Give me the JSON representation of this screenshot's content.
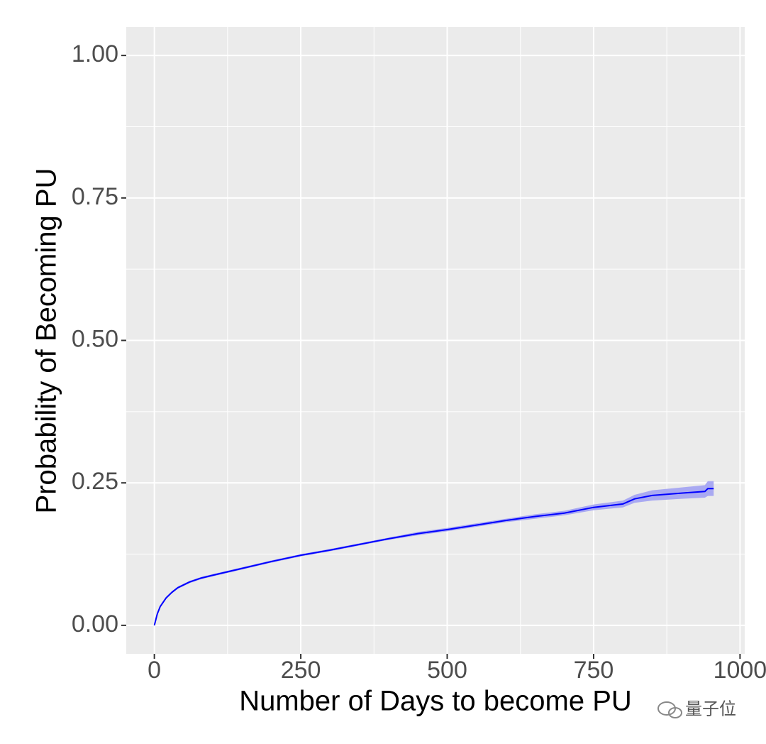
{
  "chart_data": {
    "type": "line",
    "x_label": "Number of Days to become PU",
    "y_label": "Probability of Becoming PU",
    "x": [
      0,
      5,
      10,
      20,
      30,
      40,
      60,
      80,
      100,
      150,
      200,
      250,
      300,
      350,
      400,
      450,
      500,
      550,
      600,
      650,
      700,
      750,
      800,
      820,
      850,
      900,
      940,
      945,
      955
    ],
    "series": [
      {
        "color": "#0000ff",
        "band_color": "#a9a9f2",
        "values": [
          0,
          0.02,
          0.033,
          0.048,
          0.058,
          0.066,
          0.076,
          0.083,
          0.088,
          0.1,
          0.112,
          0.123,
          0.132,
          0.142,
          0.152,
          0.161,
          0.168,
          0.176,
          0.184,
          0.191,
          0.197,
          0.207,
          0.213,
          0.222,
          0.228,
          0.232,
          0.235,
          0.24,
          0.24
        ],
        "lower": [
          0,
          0.018,
          0.031,
          0.046,
          0.056,
          0.064,
          0.074,
          0.081,
          0.086,
          0.098,
          0.11,
          0.121,
          0.13,
          0.14,
          0.15,
          0.158,
          0.165,
          0.173,
          0.181,
          0.187,
          0.193,
          0.202,
          0.207,
          0.215,
          0.219,
          0.222,
          0.224,
          0.227,
          0.227
        ],
        "upper": [
          0,
          0.022,
          0.035,
          0.05,
          0.06,
          0.068,
          0.078,
          0.085,
          0.09,
          0.102,
          0.114,
          0.125,
          0.134,
          0.144,
          0.154,
          0.164,
          0.171,
          0.179,
          0.187,
          0.195,
          0.201,
          0.212,
          0.219,
          0.229,
          0.237,
          0.242,
          0.246,
          0.253,
          0.253
        ]
      }
    ],
    "xlim": [
      -48,
      1008
    ],
    "xticks": [
      0,
      250,
      500,
      750,
      1000
    ],
    "ylim": [
      -0.05,
      1.05
    ],
    "yticks": [
      {
        "value": 0,
        "label": "0.00"
      },
      {
        "value": 0.25,
        "label": "0.25"
      },
      {
        "value": 0.5,
        "label": "0.50"
      },
      {
        "value": 0.75,
        "label": "0.75"
      },
      {
        "value": 1,
        "label": "1.00"
      }
    ],
    "grid": true,
    "minor_grid": true,
    "background": "#ebebeb"
  },
  "watermark": "量子位"
}
